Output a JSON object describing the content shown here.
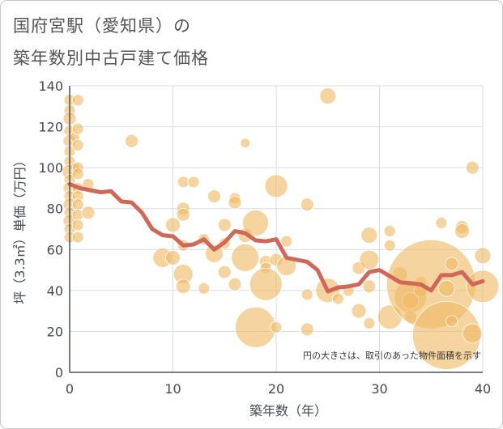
{
  "title_line1": "国府宮駅（愛知県）の",
  "title_line2": "築年数別中古戸建て価格",
  "chart_data": {
    "type": "scatter",
    "title": "国府宮駅（愛知県）の築年数別中古戸建て価格",
    "xlabel": "築年数（年）",
    "ylabel": "坪（3.3㎡）単価（万円）",
    "xlim": [
      0,
      40
    ],
    "ylim": [
      0,
      140
    ],
    "x_ticks": [
      "0",
      "10",
      "20",
      "30",
      "40"
    ],
    "y_ticks": [
      "0",
      "20",
      "40",
      "60",
      "80",
      "100",
      "120",
      "140"
    ],
    "grid": true,
    "note": "円の大きさは、取引のあった物件面積を示す",
    "bubble_color": "#f0b860",
    "line_color": "#d0685a",
    "series": [
      {
        "kind": "line",
        "x": [
          0,
          1,
          2,
          3,
          4,
          5,
          6,
          7,
          8,
          9,
          10,
          11,
          12,
          13,
          14,
          15,
          16,
          17,
          18,
          19,
          20,
          21,
          22,
          23,
          24,
          25,
          26,
          27,
          28,
          29,
          30,
          31,
          32,
          33,
          34,
          35,
          36,
          37,
          38,
          39,
          40
        ],
        "y": [
          92,
          90,
          89,
          88,
          88.5,
          83.5,
          83,
          78,
          70,
          67,
          66.5,
          62,
          62.5,
          65,
          60,
          63.5,
          69,
          68,
          64.5,
          64,
          65,
          56,
          55,
          54,
          50,
          39.5,
          41.5,
          42,
          43,
          49,
          50,
          47,
          44,
          43.5,
          43,
          40,
          47.5,
          47.5,
          49,
          43,
          44.5
        ]
      },
      {
        "kind": "bubble",
        "points": [
          {
            "x": 0,
            "y": 133,
            "r": 7
          },
          {
            "x": 0,
            "y": 128,
            "r": 7
          },
          {
            "x": 0,
            "y": 124,
            "r": 8
          },
          {
            "x": 0,
            "y": 118,
            "r": 7
          },
          {
            "x": 0,
            "y": 113,
            "r": 8
          },
          {
            "x": 0,
            "y": 108,
            "r": 7
          },
          {
            "x": 0,
            "y": 103,
            "r": 7
          },
          {
            "x": 0,
            "y": 98,
            "r": 9
          },
          {
            "x": 0,
            "y": 94,
            "r": 7
          },
          {
            "x": 0,
            "y": 90,
            "r": 8
          },
          {
            "x": 0,
            "y": 86,
            "r": 7
          },
          {
            "x": 0,
            "y": 82,
            "r": 8
          },
          {
            "x": 0,
            "y": 78,
            "r": 7
          },
          {
            "x": 0,
            "y": 74,
            "r": 8
          },
          {
            "x": 0,
            "y": 70,
            "r": 7
          },
          {
            "x": 0,
            "y": 66,
            "r": 7
          },
          {
            "x": 0.5,
            "y": 115,
            "r": 6
          },
          {
            "x": 0.5,
            "y": 100,
            "r": 6
          },
          {
            "x": 0.8,
            "y": 133,
            "r": 7
          },
          {
            "x": 0.8,
            "y": 119,
            "r": 7
          },
          {
            "x": 0.8,
            "y": 111,
            "r": 7
          },
          {
            "x": 0.8,
            "y": 100,
            "r": 7
          },
          {
            "x": 0.8,
            "y": 97,
            "r": 7
          },
          {
            "x": 0.8,
            "y": 90,
            "r": 7
          },
          {
            "x": 0.8,
            "y": 86,
            "r": 7
          },
          {
            "x": 0.8,
            "y": 82,
            "r": 7
          },
          {
            "x": 0.8,
            "y": 77,
            "r": 7
          },
          {
            "x": 0.8,
            "y": 72,
            "r": 7
          },
          {
            "x": 0.8,
            "y": 66,
            "r": 7
          },
          {
            "x": 1.8,
            "y": 92,
            "r": 7
          },
          {
            "x": 1.8,
            "y": 78,
            "r": 8
          },
          {
            "x": 6,
            "y": 113,
            "r": 8
          },
          {
            "x": 9,
            "y": 56,
            "r": 12
          },
          {
            "x": 10,
            "y": 72,
            "r": 9
          },
          {
            "x": 10,
            "y": 56,
            "r": 9
          },
          {
            "x": 11,
            "y": 93,
            "r": 7
          },
          {
            "x": 11,
            "y": 80,
            "r": 8
          },
          {
            "x": 11,
            "y": 77,
            "r": 8
          },
          {
            "x": 11,
            "y": 62,
            "r": 7
          },
          {
            "x": 11,
            "y": 48,
            "r": 12
          },
          {
            "x": 11,
            "y": 42,
            "r": 9
          },
          {
            "x": 12,
            "y": 93,
            "r": 7
          },
          {
            "x": 13,
            "y": 41,
            "r": 7
          },
          {
            "x": 13,
            "y": 65,
            "r": 7
          },
          {
            "x": 14,
            "y": 86,
            "r": 8
          },
          {
            "x": 14,
            "y": 58,
            "r": 11
          },
          {
            "x": 15,
            "y": 72,
            "r": 8
          },
          {
            "x": 15,
            "y": 63,
            "r": 7
          },
          {
            "x": 15,
            "y": 49,
            "r": 8
          },
          {
            "x": 16,
            "y": 85,
            "r": 7
          },
          {
            "x": 16,
            "y": 83,
            "r": 8
          },
          {
            "x": 16,
            "y": 43,
            "r": 8
          },
          {
            "x": 17,
            "y": 112,
            "r": 6
          },
          {
            "x": 17,
            "y": 67,
            "r": 9
          },
          {
            "x": 17,
            "y": 56,
            "r": 17
          },
          {
            "x": 18,
            "y": 73,
            "r": 16
          },
          {
            "x": 18,
            "y": 22,
            "r": 25
          },
          {
            "x": 19,
            "y": 54,
            "r": 8
          },
          {
            "x": 19,
            "y": 51,
            "r": 7
          },
          {
            "x": 19,
            "y": 43,
            "r": 20
          },
          {
            "x": 20,
            "y": 91,
            "r": 14
          },
          {
            "x": 20,
            "y": 55,
            "r": 8
          },
          {
            "x": 20,
            "y": 22,
            "r": 7
          },
          {
            "x": 21,
            "y": 64,
            "r": 7
          },
          {
            "x": 21,
            "y": 52,
            "r": 12
          },
          {
            "x": 23,
            "y": 82,
            "r": 8
          },
          {
            "x": 23,
            "y": 38,
            "r": 7
          },
          {
            "x": 23,
            "y": 21,
            "r": 8
          },
          {
            "x": 25,
            "y": 135,
            "r": 10
          },
          {
            "x": 25,
            "y": 40,
            "r": 15
          },
          {
            "x": 26,
            "y": 36,
            "r": 7
          },
          {
            "x": 27,
            "y": 40,
            "r": 7
          },
          {
            "x": 28,
            "y": 51,
            "r": 8
          },
          {
            "x": 28,
            "y": 30,
            "r": 9
          },
          {
            "x": 29,
            "y": 67,
            "r": 10
          },
          {
            "x": 29,
            "y": 55,
            "r": 12
          },
          {
            "x": 29,
            "y": 42,
            "r": 8
          },
          {
            "x": 29,
            "y": 24,
            "r": 7
          },
          {
            "x": 31,
            "y": 69,
            "r": 7
          },
          {
            "x": 31,
            "y": 62,
            "r": 7
          },
          {
            "x": 31,
            "y": 27,
            "r": 15
          },
          {
            "x": 32,
            "y": 48,
            "r": 9
          },
          {
            "x": 33,
            "y": 37,
            "r": 20
          },
          {
            "x": 33,
            "y": 35,
            "r": 10
          },
          {
            "x": 33,
            "y": 27,
            "r": 8
          },
          {
            "x": 34,
            "y": 44,
            "r": 7
          },
          {
            "x": 34,
            "y": 40,
            "r": 8
          },
          {
            "x": 35,
            "y": 43,
            "r": 55
          },
          {
            "x": 36,
            "y": 73,
            "r": 7
          },
          {
            "x": 36.5,
            "y": 18,
            "r": 42
          },
          {
            "x": 36.5,
            "y": 41,
            "r": 10
          },
          {
            "x": 37,
            "y": 53,
            "r": 8
          },
          {
            "x": 37,
            "y": 25,
            "r": 7
          },
          {
            "x": 38,
            "y": 71,
            "r": 8
          },
          {
            "x": 38,
            "y": 69,
            "r": 9
          },
          {
            "x": 39,
            "y": 100,
            "r": 8
          },
          {
            "x": 39,
            "y": 19,
            "r": 12
          },
          {
            "x": 40,
            "y": 57,
            "r": 10
          },
          {
            "x": 40,
            "y": 42,
            "r": 20
          }
        ]
      }
    ]
  }
}
